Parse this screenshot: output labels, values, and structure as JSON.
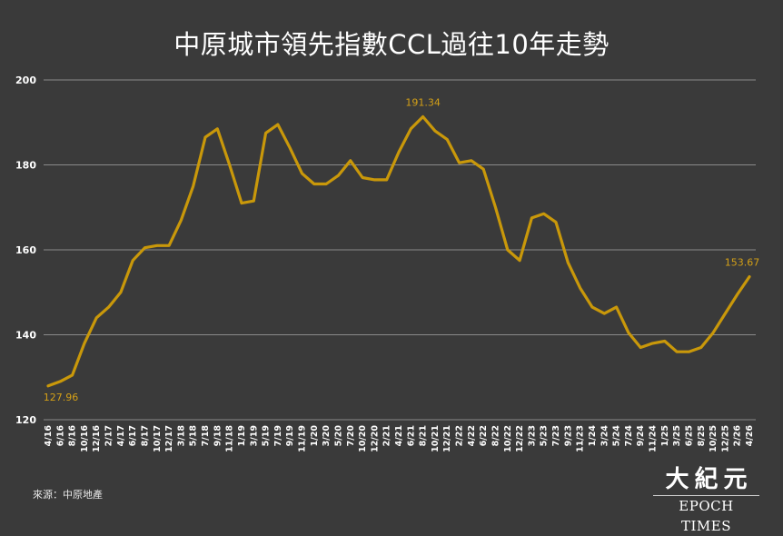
{
  "title": "中原城市領先指數CCL過往10年走勢",
  "source": "來源：中原地產",
  "logo": {
    "chinese": "大紀元",
    "english": "EPOCH TIMES"
  },
  "colors": {
    "background": "#3a3a3a",
    "line": "#c9980a",
    "grid": "#8a8a8a",
    "axis_text": "#ffffff",
    "annotation": "#d4a017"
  },
  "chart_data": {
    "type": "line",
    "title": "中原城市領先指數CCL過往10年走勢",
    "xlabel": "",
    "ylabel": "",
    "ylim": [
      120,
      200
    ],
    "yticks": [
      120,
      140,
      160,
      180,
      200
    ],
    "grid": true,
    "x_tick_labels": [
      "4/16",
      "6/16",
      "8/16",
      "10/16",
      "12/16",
      "2/17",
      "4/17",
      "6/17",
      "8/17",
      "10/17",
      "12/17",
      "3/18",
      "5/18",
      "7/18",
      "9/18",
      "11/18",
      "1/19",
      "3/19",
      "5/19",
      "7/19",
      "9/19",
      "11/19",
      "1/20",
      "3/20",
      "5/20",
      "7/20",
      "10/20",
      "12/20",
      "2/21",
      "4/21",
      "6/21",
      "8/21",
      "10/21",
      "12/21",
      "2/22",
      "4/22",
      "6/22",
      "8/22",
      "10/22",
      "12/22",
      "3/23",
      "5/23",
      "7/23",
      "9/23",
      "11/23",
      "1/24",
      "3/24",
      "5/24",
      "7/24",
      "9/24",
      "11/24",
      "1/25",
      "3/25",
      "6/25",
      "8/25",
      "10/25",
      "12/25",
      "2/26",
      "4/26"
    ],
    "series": [
      {
        "x": [
          "4/16",
          "6/16",
          "8/16",
          "10/16",
          "12/16",
          "2/17",
          "4/17",
          "6/17",
          "8/17",
          "10/17",
          "12/17",
          "3/18",
          "5/18",
          "7/18",
          "9/18",
          "11/18",
          "1/19",
          "3/19",
          "5/19",
          "7/19",
          "9/19",
          "11/19",
          "1/20",
          "3/20",
          "5/20",
          "7/20",
          "10/20",
          "12/20",
          "2/21",
          "4/21",
          "6/21",
          "8/21",
          "10/21",
          "12/21",
          "2/22",
          "4/22",
          "6/22",
          "8/22",
          "10/22",
          "12/22",
          "3/23",
          "5/23",
          "7/23",
          "9/23",
          "11/23",
          "1/24",
          "3/24",
          "5/24",
          "7/24",
          "9/24",
          "11/24",
          "1/25",
          "3/25",
          "6/25",
          "8/25",
          "10/25",
          "12/25",
          "2/26",
          "4/26"
        ],
        "values": [
          127.96,
          129.0,
          130.5,
          138.0,
          144.0,
          146.5,
          150.0,
          157.5,
          160.5,
          161.0,
          161.0,
          167.0,
          175.0,
          186.5,
          188.5,
          180.0,
          171.0,
          171.5,
          187.5,
          189.5,
          184.0,
          178.0,
          175.5,
          175.5,
          177.5,
          181.0,
          177.0,
          176.5,
          176.5,
          183.0,
          188.5,
          191.34,
          188.0,
          186.0,
          180.5,
          181.0,
          179.0,
          170.0,
          160.0,
          157.5,
          167.5,
          168.5,
          166.5,
          157.0,
          151.0,
          146.5,
          145.0,
          146.5,
          140.5,
          137.0,
          138.0,
          138.5,
          136.0,
          136.0,
          137.0,
          140.5,
          145.0,
          149.5,
          153.67
        ]
      }
    ],
    "annotations": [
      {
        "label": "127.96",
        "x": "4/16",
        "y": 127.96
      },
      {
        "label": "191.34",
        "x": "8/21",
        "y": 191.34
      },
      {
        "label": "153.67",
        "x": "4/26",
        "y": 153.67
      }
    ]
  }
}
